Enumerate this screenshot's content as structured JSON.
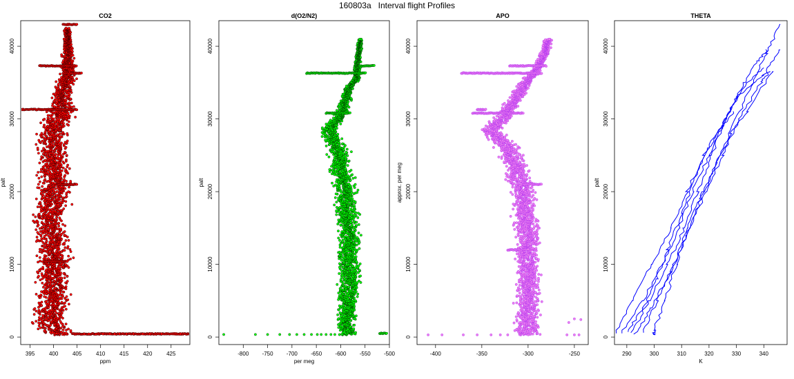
{
  "figure": {
    "title": "160803a   Interval flight Profiles"
  },
  "chart_data": [
    {
      "type": "scatter",
      "title": "CO2",
      "xlabel": "ppm",
      "ylabel": "palt",
      "xlim": [
        393,
        429
      ],
      "ylim": [
        0,
        43000
      ],
      "xticks": [
        395,
        400,
        405,
        410,
        415,
        420,
        425
      ],
      "yticks": [
        0,
        10000,
        20000,
        30000,
        40000
      ],
      "series": [
        {
          "color": "#ff0000",
          "outline": "#000000",
          "profile": [
            [
              300,
              401,
              3.5
            ],
            [
              2000,
              399,
              3.5
            ],
            [
              5000,
              400,
              4
            ],
            [
              8000,
              400,
              4
            ],
            [
              10500,
              400,
              4
            ],
            [
              13000,
              400,
              4
            ],
            [
              16000,
              399,
              4
            ],
            [
              19000,
              400,
              4
            ],
            [
              22000,
              400,
              4
            ],
            [
              25000,
              400,
              4
            ],
            [
              28000,
              400,
              4
            ],
            [
              30500,
              401,
              3.5
            ],
            [
              32000,
              402,
              3
            ],
            [
              34000,
              402,
              2.5
            ],
            [
              36000,
              403,
              2
            ],
            [
              38000,
              403,
              1.5
            ],
            [
              40000,
              403,
              1
            ],
            [
              42500,
              403,
              0.8
            ]
          ],
          "spikes": [
            [
              430,
              404,
              430
            ],
            [
              31300,
              392.5,
              405
            ],
            [
              37300,
              397,
              405
            ],
            [
              36300,
              402,
              406
            ],
            [
              21000,
              401,
              405
            ],
            [
              10400,
              398,
              403
            ],
            [
              43000,
              402,
              405
            ]
          ],
          "tail": [
            [
              430,
              406.5
            ],
            [
              430,
              407.5
            ],
            [
              400,
              409
            ],
            [
              430,
              410.5
            ],
            [
              430,
              412
            ],
            [
              430,
              413
            ],
            [
              430,
              414
            ],
            [
              430,
              415.5
            ],
            [
              430,
              417
            ],
            [
              430,
              419
            ],
            [
              430,
              420.5
            ],
            [
              430,
              423
            ],
            [
              430,
              427
            ]
          ]
        }
      ]
    },
    {
      "type": "scatter",
      "title": "d(O2/N2)",
      "xlabel": "per meg",
      "ylabel": "palt",
      "xlim": [
        -850,
        -500
      ],
      "ylim": [
        0,
        43000
      ],
      "xticks": [
        -800,
        -750,
        -700,
        -650,
        -600,
        -550,
        -500
      ],
      "yticks": [
        0,
        10000,
        20000,
        30000,
        40000
      ],
      "series": [
        {
          "color": "#00ff00",
          "outline": "#000000",
          "profile": [
            [
              300,
              -580,
              25
            ],
            [
              2000,
              -590,
              20
            ],
            [
              5000,
              -585,
              25
            ],
            [
              8000,
              -580,
              25
            ],
            [
              11000,
              -585,
              25
            ],
            [
              14000,
              -582,
              25
            ],
            [
              17000,
              -588,
              25
            ],
            [
              20000,
              -590,
              25
            ],
            [
              23000,
              -598,
              25
            ],
            [
              26000,
              -605,
              25
            ],
            [
              28500,
              -625,
              20
            ],
            [
              30500,
              -600,
              15
            ],
            [
              34500,
              -582,
              10
            ],
            [
              35500,
              -568,
              8
            ],
            [
              37000,
              -566,
              7
            ],
            [
              39000,
              -563,
              6
            ],
            [
              41000,
              -560,
              5
            ]
          ],
          "spikes": [
            [
              36300,
              -670,
              -548
            ],
            [
              30800,
              -630,
              -580
            ],
            [
              37300,
              -560,
              -530
            ],
            [
              500,
              -520,
              -505
            ]
          ],
          "tail": [
            [
              350,
              -840
            ],
            [
              350,
              -775
            ],
            [
              350,
              -750
            ],
            [
              350,
              -725
            ],
            [
              350,
              -705
            ],
            [
              350,
              -690
            ],
            [
              350,
              -675
            ],
            [
              350,
              -660
            ],
            [
              350,
              -648
            ],
            [
              350,
              -640
            ],
            [
              350,
              -630
            ],
            [
              350,
              -620
            ],
            [
              350,
              -612
            ]
          ]
        }
      ]
    },
    {
      "type": "scatter",
      "title": "APO",
      "xlabel": "",
      "ylabel": "approx. per meg",
      "xlim": [
        -420,
        -235
      ],
      "ylim": [
        0,
        43000
      ],
      "xticks": [
        -400,
        -350,
        -300,
        -250
      ],
      "yticks": [
        0,
        10000,
        20000,
        30000,
        40000
      ],
      "series": [
        {
          "color": "#ee82ee",
          "outline": "#a020f0",
          "profile": [
            [
              300,
              -300,
              15
            ],
            [
              2000,
              -300,
              15
            ],
            [
              5000,
              -300,
              15
            ],
            [
              8000,
              -300,
              15
            ],
            [
              11000,
              -300,
              15
            ],
            [
              14000,
              -300,
              15
            ],
            [
              17000,
              -303,
              15
            ],
            [
              20000,
              -305,
              15
            ],
            [
              23000,
              -312,
              15
            ],
            [
              26000,
              -322,
              15
            ],
            [
              28500,
              -340,
              12
            ],
            [
              30500,
              -325,
              10
            ],
            [
              34500,
              -305,
              8
            ],
            [
              35500,
              -300,
              7
            ],
            [
              37000,
              -290,
              6
            ],
            [
              39000,
              -282,
              5
            ],
            [
              41000,
              -278,
              4
            ]
          ],
          "spikes": [
            [
              36300,
              -372,
              -285
            ],
            [
              31300,
              -355,
              -345
            ],
            [
              30800,
              -360,
              -305
            ],
            [
              37300,
              -320,
              -280
            ],
            [
              21000,
              -305,
              -285
            ],
            [
              12000,
              -322,
              -300
            ]
          ],
          "tail": [
            [
              300,
              -408
            ],
            [
              300,
              -393
            ],
            [
              300,
              -370
            ],
            [
              300,
              -355
            ],
            [
              300,
              -340
            ],
            [
              300,
              -330
            ],
            [
              300,
              -322
            ],
            [
              300,
              -258
            ],
            [
              300,
              -250
            ],
            [
              300,
              -245
            ],
            [
              2500,
              -250
            ],
            [
              2400,
              -243
            ],
            [
              2000,
              -256
            ]
          ]
        }
      ]
    },
    {
      "type": "line",
      "title": "THETA",
      "xlabel": "K",
      "ylabel": "palt",
      "xlim": [
        285.5,
        348.5
      ],
      "ylim": [
        0,
        43000
      ],
      "xticks": [
        290,
        300,
        310,
        320,
        330,
        340
      ],
      "yticks": [
        0,
        10000,
        20000,
        30000,
        40000
      ],
      "series": [
        {
          "color": "#0000ff",
          "points": [
            [
              300,
              300
            ],
            [
              1000,
              300
            ],
            [
              5000,
              304
            ],
            [
              10000,
              308
            ],
            [
              15000,
              312
            ],
            [
              20000,
              318
            ],
            [
              25000,
              324
            ],
            [
              30000,
              330
            ],
            [
              35000,
              336
            ],
            [
              39000,
              341
            ],
            [
              43000,
              346
            ]
          ]
        },
        {
          "color": "#0000ff",
          "points": [
            [
              500,
              288
            ],
            [
              5000,
              296
            ],
            [
              10000,
              303
            ],
            [
              15000,
              309
            ],
            [
              20000,
              314
            ],
            [
              25000,
              320
            ],
            [
              30000,
              326
            ],
            [
              35000,
              333
            ],
            [
              38000,
              338
            ],
            [
              39500,
              341
            ]
          ]
        },
        {
          "color": "#0000ff",
          "points": [
            [
              600,
              292
            ],
            [
              5000,
              298
            ],
            [
              10000,
              305
            ],
            [
              15000,
              311
            ],
            [
              20000,
              316
            ],
            [
              25000,
              321
            ],
            [
              30000,
              326
            ],
            [
              33000,
              330
            ],
            [
              36000,
              340
            ],
            [
              39500,
              346
            ]
          ]
        },
        {
          "color": "#0000ff",
          "points": [
            [
              600,
              296
            ],
            [
              5000,
              301
            ],
            [
              10000,
              307
            ],
            [
              15000,
              313
            ],
            [
              20000,
              319
            ],
            [
              25000,
              325
            ],
            [
              30000,
              331
            ],
            [
              35000,
              339
            ],
            [
              36500,
              342
            ]
          ]
        },
        {
          "color": "#0000ff",
          "points": [
            [
              500,
              286
            ],
            [
              5000,
              292
            ],
            [
              10000,
              299
            ],
            [
              15000,
              306
            ],
            [
              20000,
              312
            ],
            [
              25000,
              318
            ],
            [
              30000,
              326
            ],
            [
              35000,
              334
            ],
            [
              37000,
              340
            ]
          ]
        },
        {
          "color": "#0000ff",
          "points": [
            [
              700,
              290
            ],
            [
              4000,
              296
            ],
            [
              8000,
              301
            ],
            [
              12000,
              305
            ],
            [
              17000,
              310
            ],
            [
              22000,
              315
            ],
            [
              26000,
              320
            ],
            [
              29000,
              325
            ],
            [
              31000,
              329
            ]
          ]
        },
        {
          "color": "#0000ff",
          "points": [
            [
              400,
              293
            ],
            [
              4000,
              299
            ],
            [
              9000,
              306
            ],
            [
              14000,
              312
            ],
            [
              19000,
              317
            ],
            [
              24000,
              323
            ],
            [
              28000,
              328
            ],
            [
              31000,
              334
            ],
            [
              36500,
              343
            ]
          ]
        }
      ]
    }
  ]
}
